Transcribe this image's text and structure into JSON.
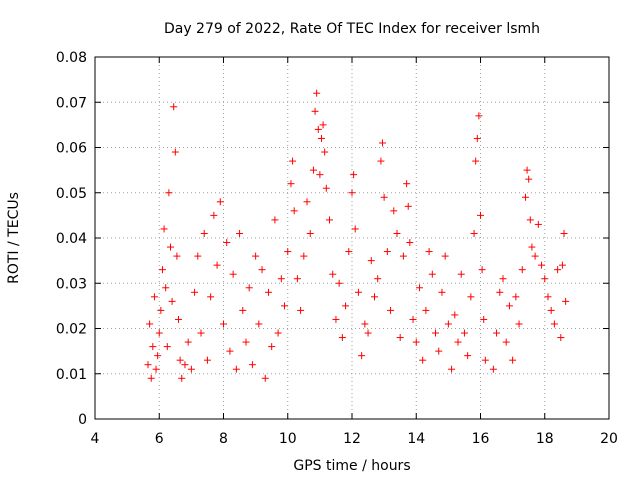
{
  "chart_data": {
    "type": "scatter",
    "title": "Day 279 of 2022, Rate Of TEC Index for receiver lsmh",
    "xlabel": "GPS time / hours",
    "ylabel": "ROTI / TECUs",
    "xlim": [
      4,
      20
    ],
    "ylim": [
      0,
      0.08
    ],
    "xticks": [
      4,
      6,
      8,
      10,
      12,
      14,
      16,
      18,
      20
    ],
    "xtick_labels": [
      "4",
      "6",
      "8",
      "10",
      "12",
      "14",
      "16",
      "18",
      "20"
    ],
    "yticks": [
      0,
      0.01,
      0.02,
      0.03,
      0.04,
      0.05,
      0.06,
      0.07,
      0.08
    ],
    "ytick_labels": [
      "0",
      "0.01",
      "0.02",
      "0.03",
      "0.04",
      "0.05",
      "0.06",
      "0.07",
      "0.08"
    ],
    "grid": true,
    "marker": "+",
    "color": "#ff0000",
    "series": [
      {
        "points": [
          [
            5.65,
            0.012
          ],
          [
            5.7,
            0.021
          ],
          [
            5.75,
            0.009
          ],
          [
            5.8,
            0.016
          ],
          [
            5.85,
            0.027
          ],
          [
            5.9,
            0.011
          ],
          [
            5.95,
            0.014
          ],
          [
            6.0,
            0.019
          ],
          [
            6.05,
            0.024
          ],
          [
            6.1,
            0.033
          ],
          [
            6.15,
            0.042
          ],
          [
            6.2,
            0.029
          ],
          [
            6.25,
            0.016
          ],
          [
            6.3,
            0.05
          ],
          [
            6.35,
            0.038
          ],
          [
            6.4,
            0.026
          ],
          [
            6.45,
            0.069
          ],
          [
            6.5,
            0.059
          ],
          [
            6.55,
            0.036
          ],
          [
            6.6,
            0.022
          ],
          [
            6.65,
            0.013
          ],
          [
            6.7,
            0.009
          ],
          [
            6.8,
            0.012
          ],
          [
            6.9,
            0.017
          ],
          [
            7.0,
            0.011
          ],
          [
            7.1,
            0.028
          ],
          [
            7.2,
            0.036
          ],
          [
            7.3,
            0.019
          ],
          [
            7.4,
            0.041
          ],
          [
            7.5,
            0.013
          ],
          [
            7.6,
            0.027
          ],
          [
            7.7,
            0.045
          ],
          [
            7.8,
            0.034
          ],
          [
            7.9,
            0.048
          ],
          [
            8.0,
            0.021
          ],
          [
            8.1,
            0.039
          ],
          [
            8.2,
            0.015
          ],
          [
            8.3,
            0.032
          ],
          [
            8.4,
            0.011
          ],
          [
            8.5,
            0.041
          ],
          [
            8.6,
            0.024
          ],
          [
            8.7,
            0.017
          ],
          [
            8.8,
            0.029
          ],
          [
            8.9,
            0.012
          ],
          [
            9.0,
            0.036
          ],
          [
            9.1,
            0.021
          ],
          [
            9.2,
            0.033
          ],
          [
            9.3,
            0.009
          ],
          [
            9.4,
            0.028
          ],
          [
            9.5,
            0.016
          ],
          [
            9.6,
            0.044
          ],
          [
            9.7,
            0.019
          ],
          [
            9.8,
            0.031
          ],
          [
            9.9,
            0.025
          ],
          [
            10.0,
            0.037
          ],
          [
            10.1,
            0.052
          ],
          [
            10.15,
            0.057
          ],
          [
            10.2,
            0.046
          ],
          [
            10.3,
            0.031
          ],
          [
            10.4,
            0.024
          ],
          [
            10.5,
            0.036
          ],
          [
            10.6,
            0.048
          ],
          [
            10.7,
            0.041
          ],
          [
            10.8,
            0.055
          ],
          [
            10.85,
            0.068
          ],
          [
            10.9,
            0.072
          ],
          [
            10.95,
            0.064
          ],
          [
            11.0,
            0.054
          ],
          [
            11.05,
            0.062
          ],
          [
            11.1,
            0.065
          ],
          [
            11.15,
            0.059
          ],
          [
            11.2,
            0.051
          ],
          [
            11.3,
            0.044
          ],
          [
            11.4,
            0.032
          ],
          [
            11.5,
            0.022
          ],
          [
            11.6,
            0.03
          ],
          [
            11.7,
            0.018
          ],
          [
            11.8,
            0.025
          ],
          [
            11.9,
            0.037
          ],
          [
            12.0,
            0.05
          ],
          [
            12.05,
            0.054
          ],
          [
            12.1,
            0.042
          ],
          [
            12.2,
            0.028
          ],
          [
            12.3,
            0.014
          ],
          [
            12.4,
            0.021
          ],
          [
            12.5,
            0.019
          ],
          [
            12.6,
            0.035
          ],
          [
            12.7,
            0.027
          ],
          [
            12.8,
            0.031
          ],
          [
            12.9,
            0.057
          ],
          [
            12.95,
            0.061
          ],
          [
            13.0,
            0.049
          ],
          [
            13.1,
            0.037
          ],
          [
            13.2,
            0.024
          ],
          [
            13.3,
            0.046
          ],
          [
            13.4,
            0.041
          ],
          [
            13.5,
            0.018
          ],
          [
            13.6,
            0.036
          ],
          [
            13.7,
            0.052
          ],
          [
            13.75,
            0.047
          ],
          [
            13.8,
            0.039
          ],
          [
            13.9,
            0.022
          ],
          [
            14.0,
            0.017
          ],
          [
            14.1,
            0.029
          ],
          [
            14.2,
            0.013
          ],
          [
            14.3,
            0.024
          ],
          [
            14.4,
            0.037
          ],
          [
            14.5,
            0.032
          ],
          [
            14.6,
            0.019
          ],
          [
            14.7,
            0.015
          ],
          [
            14.8,
            0.028
          ],
          [
            14.9,
            0.036
          ],
          [
            15.0,
            0.021
          ],
          [
            15.1,
            0.011
          ],
          [
            15.2,
            0.023
          ],
          [
            15.3,
            0.017
          ],
          [
            15.4,
            0.032
          ],
          [
            15.5,
            0.019
          ],
          [
            15.6,
            0.014
          ],
          [
            15.7,
            0.027
          ],
          [
            15.8,
            0.041
          ],
          [
            15.85,
            0.057
          ],
          [
            15.9,
            0.062
          ],
          [
            15.95,
            0.067
          ],
          [
            16.0,
            0.045
          ],
          [
            16.05,
            0.033
          ],
          [
            16.1,
            0.022
          ],
          [
            16.15,
            0.013
          ],
          [
            16.4,
            0.011
          ],
          [
            16.5,
            0.019
          ],
          [
            16.6,
            0.028
          ],
          [
            16.7,
            0.031
          ],
          [
            16.8,
            0.017
          ],
          [
            16.9,
            0.025
          ],
          [
            17.0,
            0.013
          ],
          [
            17.1,
            0.027
          ],
          [
            17.2,
            0.021
          ],
          [
            17.3,
            0.033
          ],
          [
            17.4,
            0.049
          ],
          [
            17.45,
            0.055
          ],
          [
            17.5,
            0.053
          ],
          [
            17.55,
            0.044
          ],
          [
            17.6,
            0.038
          ],
          [
            17.7,
            0.036
          ],
          [
            17.8,
            0.043
          ],
          [
            17.9,
            0.034
          ],
          [
            18.0,
            0.031
          ],
          [
            18.1,
            0.027
          ],
          [
            18.2,
            0.024
          ],
          [
            18.3,
            0.021
          ],
          [
            18.4,
            0.033
          ],
          [
            18.5,
            0.018
          ],
          [
            18.55,
            0.034
          ],
          [
            18.6,
            0.041
          ],
          [
            18.65,
            0.026
          ]
        ]
      }
    ]
  }
}
